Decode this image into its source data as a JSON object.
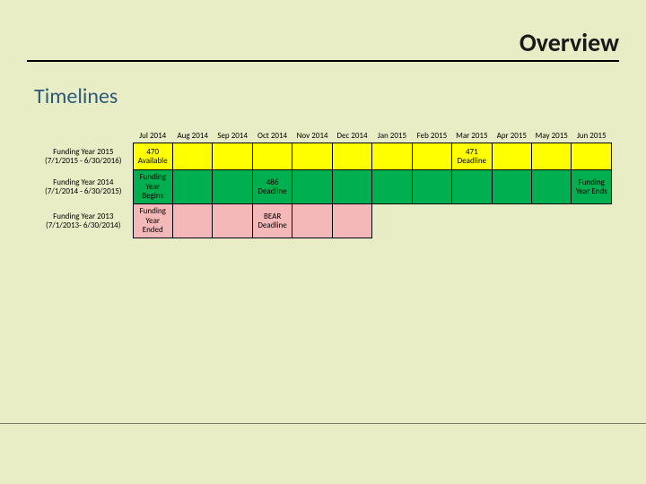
{
  "page": {
    "title": "Overview",
    "section": "Timelines"
  },
  "colors": {
    "background": "#e9edc5",
    "yellow": "#ffff00",
    "green": "#00b050",
    "pink": "#f4b8b8",
    "border": "#000000",
    "rule": "#7a7a60"
  },
  "timeline": {
    "months": [
      "Jul 2014",
      "Aug 2014",
      "Sep 2014",
      "Oct 2014",
      "Nov 2014",
      "Dec 2014",
      "Jan 2015",
      "Feb 2015",
      "Mar 2015",
      "Apr 2015",
      "May 2015",
      "Jun 2015"
    ],
    "rows": [
      {
        "label_line1": "Funding Year 2015",
        "label_line2": "(7/1/2015 - 6/30/2016)",
        "cells": [
          {
            "text": "470 Available",
            "color": "#ffff00",
            "border": true
          },
          {
            "text": "",
            "color": "#ffff00",
            "border": true
          },
          {
            "text": "",
            "color": "#ffff00",
            "border": true
          },
          {
            "text": "",
            "color": "#ffff00",
            "border": true
          },
          {
            "text": "",
            "color": "#ffff00",
            "border": true
          },
          {
            "text": "",
            "color": "#ffff00",
            "border": true
          },
          {
            "text": "",
            "color": "#ffff00",
            "border": true
          },
          {
            "text": "",
            "color": "#ffff00",
            "border": true
          },
          {
            "text": "471 Deadline",
            "color": "#ffff00",
            "border": true
          },
          {
            "text": "",
            "color": "#ffff00",
            "border": true
          },
          {
            "text": "",
            "color": "#ffff00",
            "border": true
          },
          {
            "text": "",
            "color": "#ffff00",
            "border": true
          }
        ]
      },
      {
        "label_line1": "Funding Year 2014",
        "label_line2": "(7/1/2014 - 6/30/2015)",
        "cells": [
          {
            "text": "Funding Year Begins",
            "color": "#00b050",
            "border": true
          },
          {
            "text": "",
            "color": "#00b050",
            "border": true
          },
          {
            "text": "",
            "color": "#00b050",
            "border": true
          },
          {
            "text": "486 Deadline",
            "color": "#00b050",
            "border": true
          },
          {
            "text": "",
            "color": "#00b050",
            "border": true
          },
          {
            "text": "",
            "color": "#00b050",
            "border": true
          },
          {
            "text": "",
            "color": "#00b050",
            "border": true
          },
          {
            "text": "",
            "color": "#00b050",
            "border": true
          },
          {
            "text": "",
            "color": "#00b050",
            "border": true
          },
          {
            "text": "",
            "color": "#00b050",
            "border": true
          },
          {
            "text": "",
            "color": "#00b050",
            "border": true
          },
          {
            "text": "Funding Year Ends",
            "color": "#00b050",
            "border": true
          }
        ]
      },
      {
        "label_line1": "Funding Year 2013",
        "label_line2": "(7/1/2013- 6/30/2014)",
        "cells": [
          {
            "text": "Funding Year Ended",
            "color": "#f4b8b8",
            "border": true
          },
          {
            "text": "",
            "color": "#f4b8b8",
            "border": true
          },
          {
            "text": "",
            "color": "#f4b8b8",
            "border": true
          },
          {
            "text": "BEAR Deadline",
            "color": "#f4b8b8",
            "border": true
          },
          {
            "text": "",
            "color": "#f4b8b8",
            "border": true
          },
          {
            "text": "",
            "color": "#f4b8b8",
            "border": true
          },
          {
            "text": "",
            "color": "",
            "border": false
          },
          {
            "text": "",
            "color": "",
            "border": false
          },
          {
            "text": "",
            "color": "",
            "border": false
          },
          {
            "text": "",
            "color": "",
            "border": false
          },
          {
            "text": "",
            "color": "",
            "border": false
          },
          {
            "text": "",
            "color": "",
            "border": false
          }
        ]
      }
    ]
  }
}
